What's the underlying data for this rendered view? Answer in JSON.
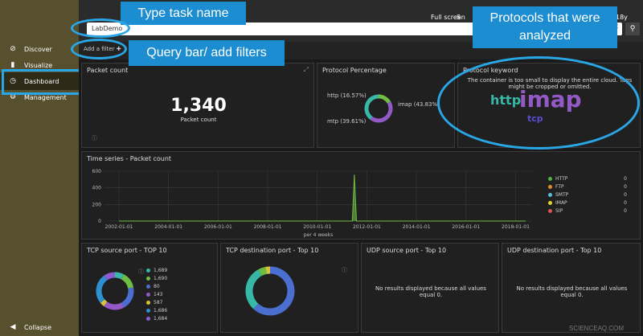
{
  "sidebar": {
    "items": [
      {
        "label": "Discover",
        "icon": "compass-icon",
        "glyph": "⊘"
      },
      {
        "label": "Visualize",
        "icon": "bar-chart-icon",
        "glyph": "▮"
      },
      {
        "label": "Dashboard",
        "icon": "dashboard-icon",
        "glyph": "◷"
      },
      {
        "label": "Management",
        "icon": "gear-icon",
        "glyph": "⚙"
      }
    ],
    "collapse_label": "Collapse"
  },
  "topbar": {
    "full_screen_label": "Full screen",
    "share_label": "S",
    "time_label": "18y",
    "search_value": "LabDemo"
  },
  "filter": {
    "add_label": "Add a filter"
  },
  "callouts": {
    "type_task": "Type task name",
    "query_bar": "Query bar/ add filters",
    "protocols": "Protocols that were analyzed"
  },
  "panels": {
    "packet_count": {
      "title": "Packet count",
      "value": "1,340",
      "caption": "Packet count"
    },
    "protocol_percentage": {
      "title": "Protocol Percentage",
      "labels": [
        "http (16.57%)",
        "imap (43.83%)",
        "mtp (39.61%)"
      ],
      "slices": [
        {
          "name": "http",
          "value": 16.57,
          "color": "#6fbd45"
        },
        {
          "name": "imap",
          "value": 43.83,
          "color": "#9359c7"
        },
        {
          "name": "mtp",
          "value": 39.61,
          "color": "#37b8a6"
        }
      ]
    },
    "protocol_keyword": {
      "title": "Protocol keyword",
      "message": "The container is too small to display the entire cloud. Tags might be cropped or omitted.",
      "words": [
        "http",
        "imap",
        "tcp"
      ]
    },
    "time_series": {
      "title": "Time series - Packet count",
      "xlabel": "per 4 weeks"
    },
    "tcp_source": {
      "title": "TCP source port - TOP 10",
      "legend": [
        "1,689",
        "1,690",
        "80",
        "143",
        "587",
        "1,686",
        "1,684"
      ]
    },
    "tcp_dest": {
      "title": "TCP destination port - Top 10"
    },
    "udp_source": {
      "title": "UDP source port - Top 10",
      "message": "No results displayed because all values equal 0."
    },
    "udp_dest": {
      "title": "UDP destination port - Top 10",
      "message": "No results displayed because all values equal 0."
    }
  },
  "legend_protocols": [
    {
      "label": "HTTP",
      "value": "0",
      "color": "#54b33d"
    },
    {
      "label": "FTP",
      "value": "0",
      "color": "#e0892c"
    },
    {
      "label": "SMTP",
      "value": "0",
      "color": "#54c1d8"
    },
    {
      "label": "IMAP",
      "value": "0",
      "color": "#e6d133"
    },
    {
      "label": "SIP",
      "value": "0",
      "color": "#d9534f"
    }
  ],
  "chart_data": {
    "type": "line",
    "title": "Time series - Packet count",
    "xlabel": "per 4 weeks",
    "ylabel": "",
    "ylim": [
      0,
      600
    ],
    "yticks": [
      "600",
      "400",
      "200",
      "0"
    ],
    "xticks": [
      "2002-01-01",
      "2004-01-01",
      "2006-01-01",
      "2008-01-01",
      "2010-01-01",
      "2012-01-01",
      "2014-01-01",
      "2016-01-01",
      "2018-01-01"
    ],
    "series": [
      {
        "points": [
          [
            "2002-01-01",
            0
          ],
          [
            "2011-06-01",
            0
          ],
          [
            "2011-07-01",
            560
          ],
          [
            "2011-08-01",
            0
          ],
          [
            "2018-06-01",
            0
          ]
        ]
      }
    ]
  }
}
